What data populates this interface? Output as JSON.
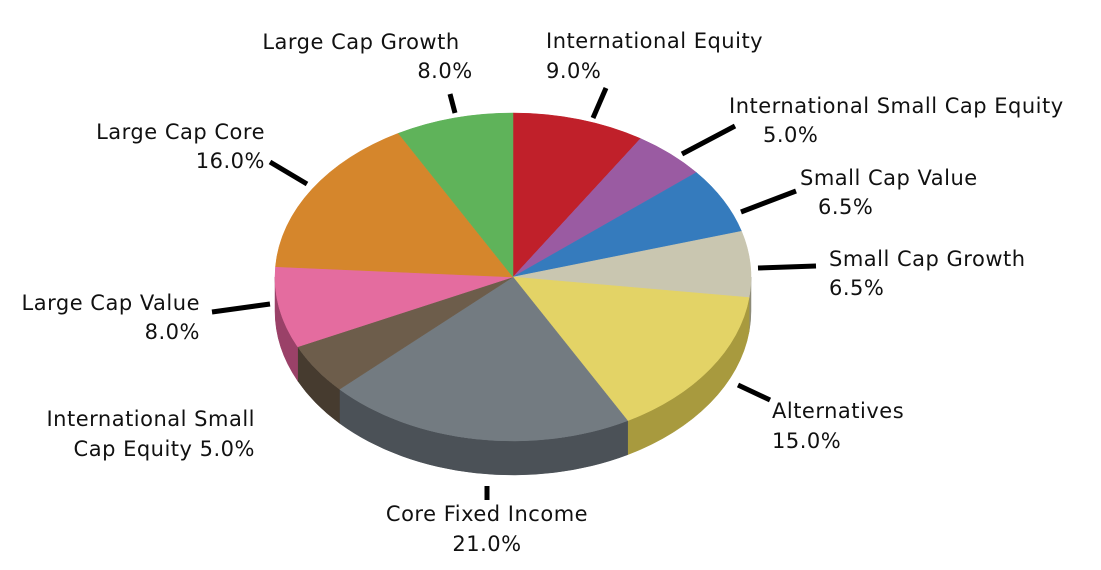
{
  "chart_data": {
    "type": "pie",
    "title": "",
    "three_d": true,
    "slices": [
      {
        "line1": "International Equity",
        "line2": "9.0%",
        "value": 9.0,
        "color": "#c0202a",
        "side": "#7e1218"
      },
      {
        "line1": "International Small Cap Equity",
        "line2": "5.0%",
        "value": 5.0,
        "color": "#9a5ba2",
        "side": "#5f3666"
      },
      {
        "line1": "Small Cap Value",
        "line2": "6.5%",
        "value": 6.5,
        "color": "#357bbd",
        "side": "#1f4d78"
      },
      {
        "line1": "Small Cap Growth",
        "line2": "6.5%",
        "value": 6.5,
        "color": "#c9c6b0",
        "side": "#8d8b78"
      },
      {
        "line1": "Alternatives",
        "line2": "15.0%",
        "value": 15.0,
        "color": "#e3d366",
        "side": "#a89a3e"
      },
      {
        "line1": "Core Fixed Income",
        "line2": "21.0%",
        "value": 21.0,
        "color": "#737b81",
        "side": "#4b5157"
      },
      {
        "line1": "International Small",
        "line2": "Cap Equity 5.0%",
        "value": 5.0,
        "color": "#6d5d4b",
        "side": "#463b2f"
      },
      {
        "line1": "Large Cap Value",
        "line2": "8.0%",
        "value": 8.0,
        "color": "#e46c9f",
        "side": "#9a4168"
      },
      {
        "line1": "Large Cap Core",
        "line2": "16.0%",
        "value": 16.0,
        "color": "#d5862c",
        "side": "#93591a"
      },
      {
        "line1": "Large Cap Growth",
        "line2": "8.0%",
        "value": 8.0,
        "color": "#5fb35a",
        "side": "#3b7a37"
      }
    ]
  }
}
